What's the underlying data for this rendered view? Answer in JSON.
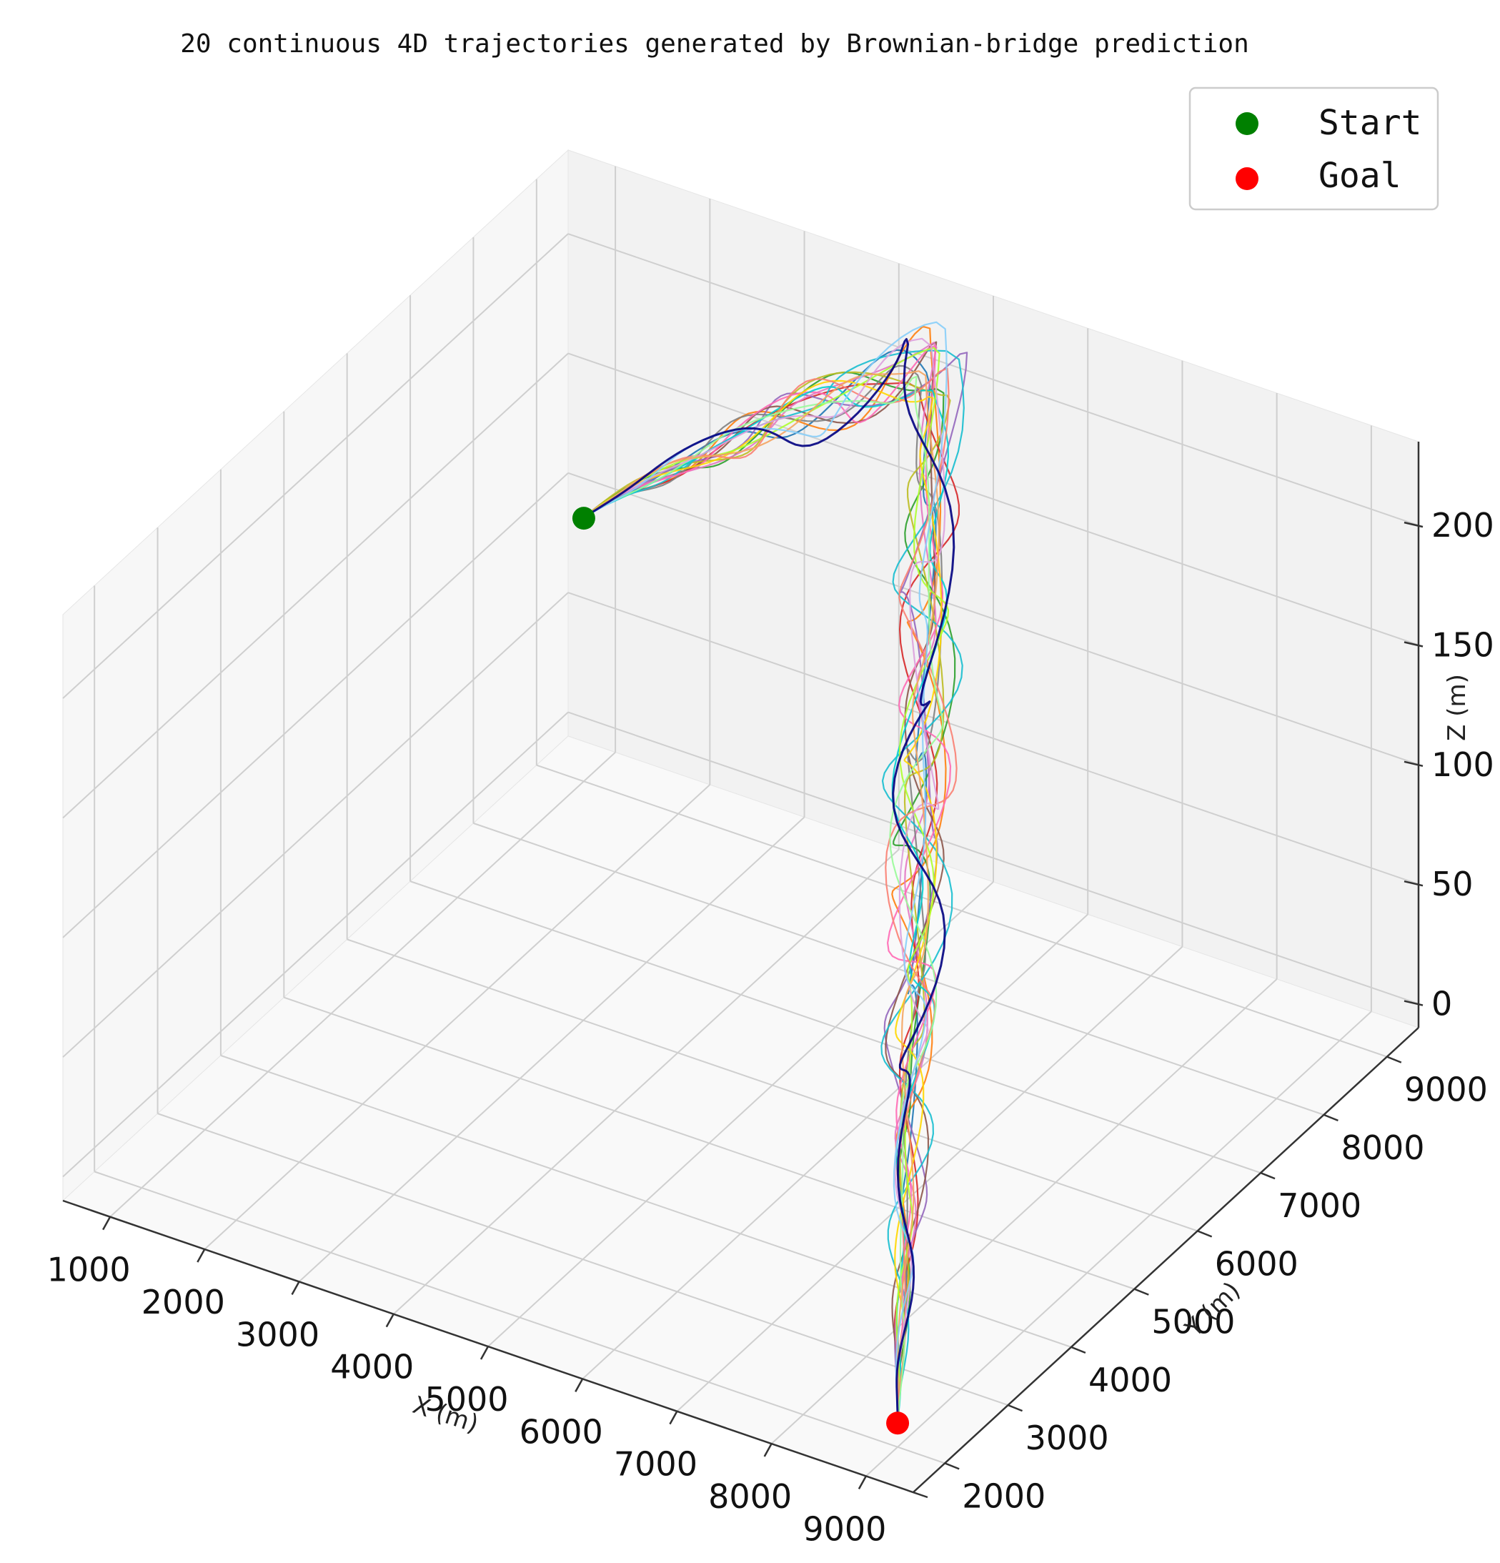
{
  "chart_data": {
    "type": "line",
    "projection": "3d",
    "title": "20 continuous 4D trajectories generated by Brownian-bridge prediction",
    "xlabel": "X (m)",
    "ylabel": "Y (m)",
    "zlabel": "Z (m)",
    "xlim": [
      500,
      9500
    ],
    "ylim": [
      1500,
      9500
    ],
    "zlim": [
      -10,
      235
    ],
    "x_ticks": [
      1000,
      2000,
      3000,
      4000,
      5000,
      6000,
      7000,
      8000,
      9000
    ],
    "x_tick_labels": [
      "1000",
      "2000",
      "3000",
      "4000",
      "5000",
      "6000",
      "7000",
      "8000",
      "9000"
    ],
    "y_ticks": [
      2000,
      3000,
      4000,
      5000,
      6000,
      7000,
      8000,
      9000
    ],
    "y_tick_labels": [
      "2000",
      "3000",
      "4000",
      "5000",
      "6000",
      "7000",
      "8000",
      "9000"
    ],
    "z_ticks": [
      0,
      50,
      100,
      150,
      200
    ],
    "z_tick_labels": [
      "0",
      "50",
      "100",
      "150",
      "200"
    ],
    "grid": true,
    "legend": {
      "placement": "top-right",
      "entries": [
        {
          "label": "Start",
          "color": "#008000"
        },
        {
          "label": "Goal",
          "color": "#ff0000"
        }
      ]
    },
    "start": {
      "x": 1000,
      "y": 9000,
      "z": 100,
      "color": "#008000"
    },
    "goal": {
      "x": 9000,
      "y": 2000,
      "z": 0,
      "color": "#ff0000"
    },
    "series_colors": [
      "#1f77b4",
      "#ff7f0e",
      "#2ca02c",
      "#d62728",
      "#9467bd",
      "#8c564b",
      "#e377c2",
      "#7f7f7f",
      "#bcbd22",
      "#17becf",
      "#ff69b4",
      "#00ced1",
      "#ffd700",
      "#adff2f",
      "#fa8072",
      "#98fb98",
      "#dda0dd",
      "#f4a460",
      "#87cefa",
      "#000080"
    ],
    "series_count": 20
  }
}
